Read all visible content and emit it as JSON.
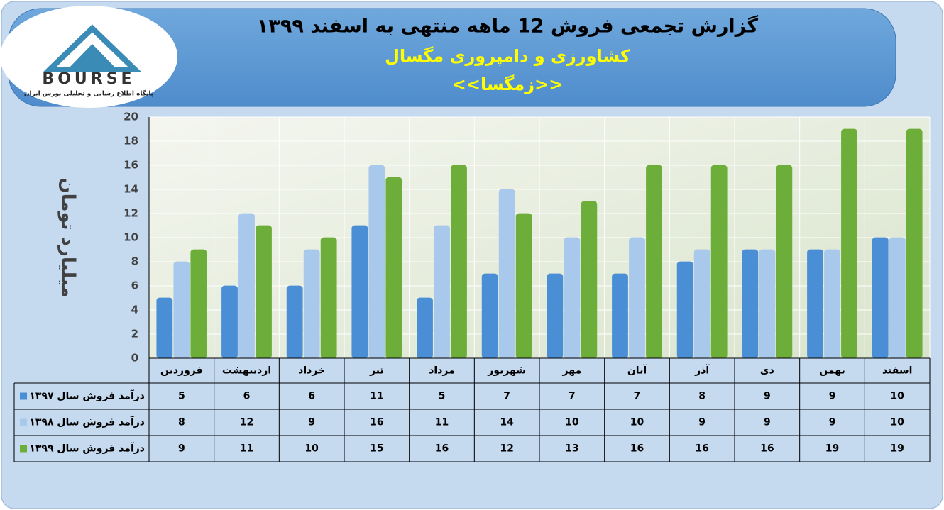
{
  "logo": {
    "text": "BOURSE",
    "tagline": "پایگاه اطلاع رسانی و تحلیلی بورس ایران"
  },
  "chart_data": {
    "type": "bar",
    "title": "گزارش تجمعی فروش  12 ماهه منتهی به اسفند ۱۳۹۹",
    "subtitle": "کشاورزی و دامپروری مگسال",
    "symbol": "<<زمگسا>>",
    "y_label": "میلیارد تومان",
    "categories": [
      "فروردین",
      "اردیبهشت",
      "خرداد",
      "تیر",
      "مرداد",
      "شهریور",
      "مهر",
      "آبان",
      "آذر",
      "دی",
      "بهمن",
      "اسفند"
    ],
    "series": [
      {
        "name": "درآمد فروش سال ۱۳۹۷",
        "color": "#4a8fd6",
        "values": [
          5,
          6,
          6,
          11,
          5,
          7,
          7,
          7,
          8,
          9,
          9,
          10
        ]
      },
      {
        "name": "درآمد فروش سال ۱۳۹۸",
        "color": "#a8c8ec",
        "values": [
          8,
          12,
          9,
          16,
          11,
          14,
          10,
          10,
          9,
          9,
          9,
          10
        ]
      },
      {
        "name": "درآمد فروش سال ۱۳۹۹",
        "color": "#6dae3a",
        "values": [
          9,
          11,
          10,
          15,
          16,
          12,
          13,
          16,
          16,
          16,
          19,
          19
        ]
      }
    ],
    "ylim": [
      0,
      20
    ],
    "yticks": [
      0,
      2,
      4,
      6,
      8,
      10,
      12,
      14,
      16,
      18,
      20
    ],
    "grid": true
  }
}
